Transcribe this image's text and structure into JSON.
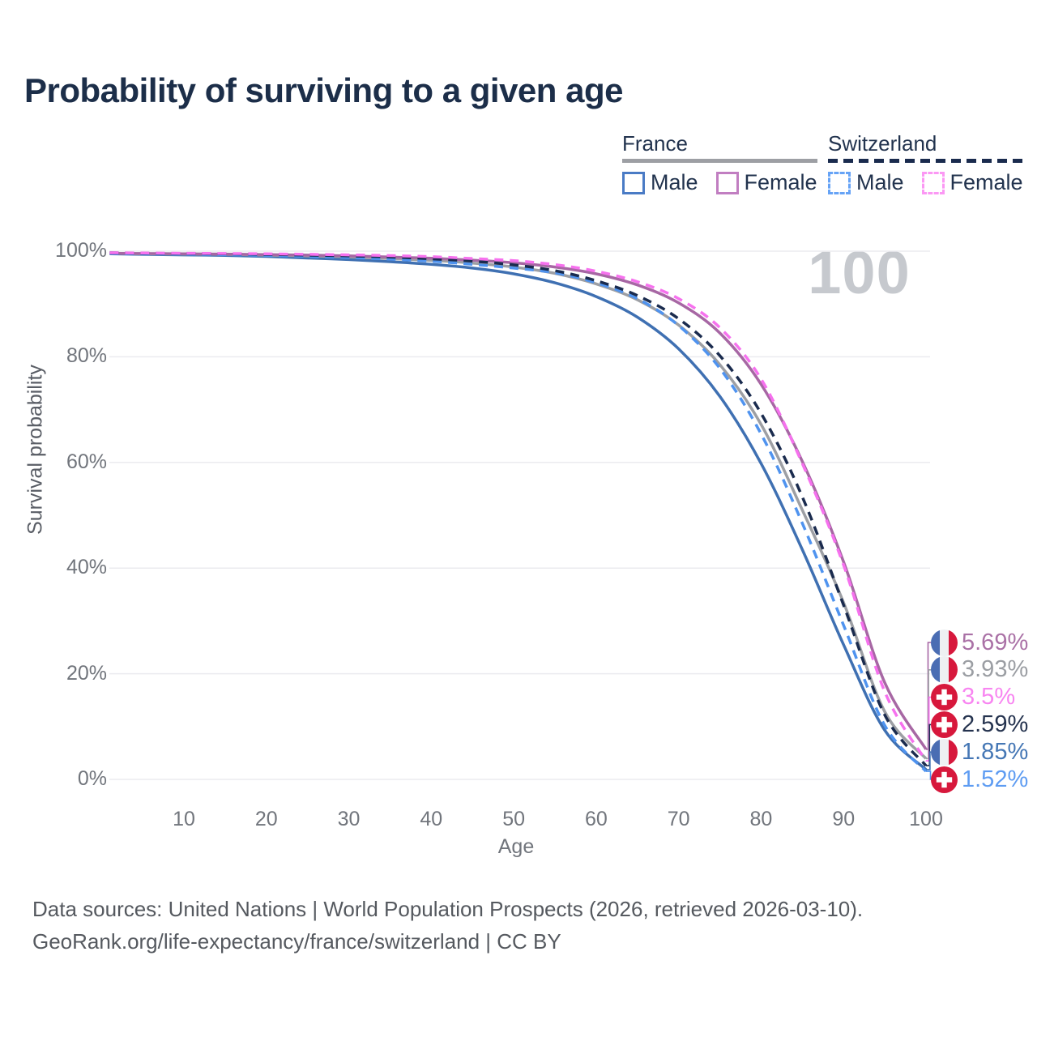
{
  "title": "Probability of surviving to a given age",
  "watermark": "100",
  "legend": {
    "groups": [
      {
        "label": "France",
        "line_style": "solid",
        "underline_color": "#9d9fa4",
        "items": [
          {
            "label": "Male",
            "color": "#4a7bc5",
            "dash": false
          },
          {
            "label": "Female",
            "color": "#c17ec1",
            "dash": false
          }
        ]
      },
      {
        "label": "Switzerland",
        "line_style": "dashed",
        "underline_color": "#1a2b4e",
        "items": [
          {
            "label": "Male",
            "color": "#66a3f6",
            "dash": true
          },
          {
            "label": "Female",
            "color": "#fb98f4",
            "dash": true
          }
        ]
      }
    ]
  },
  "chart_data": {
    "type": "line",
    "title": "Probability of surviving to a given age",
    "xlabel": "Age",
    "ylabel": "Survival probability",
    "xlim": [
      0,
      100
    ],
    "ylim": [
      0,
      100
    ],
    "x_ticks": [
      10,
      20,
      30,
      40,
      50,
      60,
      70,
      80,
      90,
      100
    ],
    "y_ticks": [
      0,
      20,
      40,
      60,
      80,
      100
    ],
    "y_tick_suffix": "%",
    "grid": "horizontal-only",
    "gridline_color": "#ebebef",
    "legend_position": "top-right",
    "x": [
      1,
      5,
      10,
      15,
      20,
      25,
      30,
      35,
      40,
      45,
      50,
      55,
      60,
      65,
      70,
      75,
      80,
      85,
      90,
      95,
      100
    ],
    "series": [
      {
        "name": "France male",
        "country": "France",
        "sex": "Male",
        "color": "#3f70b2",
        "dash": false,
        "values": [
          99.5,
          99.4,
          99.3,
          99.2,
          99.0,
          98.7,
          98.4,
          98.0,
          97.5,
          96.8,
          95.7,
          94.0,
          91.4,
          87.5,
          81.5,
          72.5,
          59.8,
          43.5,
          25.5,
          9.3,
          1.85
        ]
      },
      {
        "name": "France both sexes",
        "country": "France",
        "sex": "Both",
        "color": "#9d9fa4",
        "dash": false,
        "values": [
          99.6,
          99.5,
          99.45,
          99.4,
          99.25,
          99.1,
          98.9,
          98.6,
          98.25,
          97.75,
          97.0,
          95.8,
          93.8,
          90.8,
          86.0,
          78.5,
          67.2,
          51.0,
          33.5,
          12.8,
          3.93
        ]
      },
      {
        "name": "France female",
        "country": "France",
        "sex": "Female",
        "color": "#a767a4",
        "dash": false,
        "values": [
          99.6,
          99.55,
          99.5,
          99.45,
          99.35,
          99.25,
          99.1,
          98.9,
          98.65,
          98.3,
          97.8,
          97.0,
          95.7,
          93.6,
          90.2,
          84.5,
          74.8,
          60.2,
          41.2,
          18.3,
          5.69
        ]
      },
      {
        "name": "Switzerland male",
        "country": "Switzerland",
        "sex": "Male",
        "color": "#4f93ef",
        "dash": true,
        "values": [
          99.6,
          99.5,
          99.45,
          99.35,
          99.2,
          99.0,
          98.8,
          98.5,
          98.1,
          97.5,
          96.8,
          95.9,
          94.0,
          91.0,
          85.9,
          77.8,
          65.4,
          48.5,
          29.2,
          10.2,
          1.52
        ]
      },
      {
        "name": "Switzerland both sexes",
        "country": "Switzerland",
        "sex": "Both",
        "color": "#1a2b4e",
        "dash": true,
        "values": [
          99.7,
          99.6,
          99.55,
          99.5,
          99.4,
          99.25,
          99.1,
          98.9,
          98.55,
          98.1,
          97.4,
          96.3,
          94.4,
          91.6,
          87.2,
          80.2,
          69.3,
          53.5,
          33.0,
          12.2,
          2.59
        ]
      },
      {
        "name": "Switzerland female",
        "country": "Switzerland",
        "sex": "Female",
        "color": "#f671ee",
        "dash": true,
        "values": [
          99.7,
          99.65,
          99.6,
          99.55,
          99.5,
          99.4,
          99.3,
          99.15,
          98.95,
          98.6,
          98.2,
          97.45,
          96.2,
          94.2,
          91.0,
          85.5,
          75.8,
          59.8,
          40.6,
          16.6,
          3.5
        ]
      }
    ],
    "age_cursor": "100"
  },
  "end_labels": [
    {
      "text": "5.69%",
      "flag": "fr",
      "color": "#aa71a6",
      "series": "France female"
    },
    {
      "text": "3.93%",
      "flag": "fr",
      "color": "#9b9ea3",
      "series": "France both sexes"
    },
    {
      "text": "3.5%",
      "flag": "ch",
      "color": "#f885f1",
      "series": "Switzerland female"
    },
    {
      "text": "2.59%",
      "flag": "ch",
      "color": "#25334f",
      "series": "Switzerland both sexes"
    },
    {
      "text": "1.85%",
      "flag": "fr",
      "color": "#4577b5",
      "series": "France male"
    },
    {
      "text": "1.52%",
      "flag": "ch",
      "color": "#5e9cf2",
      "series": "Switzerland male"
    }
  ],
  "flag_colors": {
    "france_blue": "#4a6db3",
    "france_white": "#eef0f2",
    "france_red": "#d7183c",
    "swiss_red": "#d7183c",
    "swiss_cross": "#ffffff"
  },
  "footer": {
    "line1": "Data sources: United Nations | World Population Prospects (2026, retrieved 2026-03-10).",
    "line2": "GeoRank.org/life-expectancy/france/switzerland | CC BY"
  }
}
